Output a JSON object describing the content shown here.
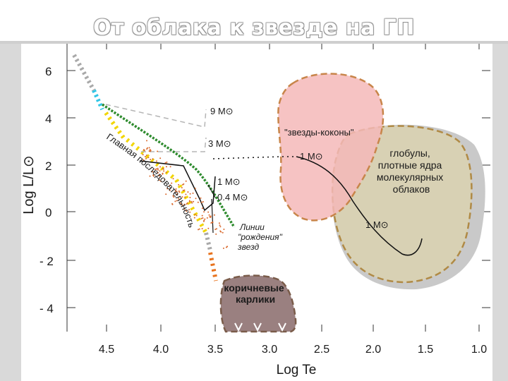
{
  "slide": {
    "title": "От облака к звезде на ГП"
  },
  "diagram": {
    "y_axis": {
      "title": "Log L/L⊙",
      "ticks": [
        "6",
        "4",
        "2",
        "0",
        "- 2",
        "- 4"
      ]
    },
    "x_axis": {
      "title": "Log Te",
      "ticks": [
        "4.5",
        "4.0",
        "3.5",
        "3.0",
        "2.5",
        "2.0",
        "1.5",
        "1.0"
      ]
    },
    "labels": {
      "mass_9": "9 M⊙",
      "mass_3": "3 M⊙",
      "mass_1_track": "1 M⊙",
      "mass_04": "0.4 M⊙",
      "cocoon_star_mass": "1 M⊙",
      "globule_mass": "1 M⊙",
      "cocoon_stars": "\"звезды-коконы\"",
      "globules": "глобулы,\nплотные ядра\nмолекулярных\nоблаков",
      "birth_line": "Линии\n\"рождения\"\nзвезд",
      "brown_dwarfs": "коричневые\nкарлики",
      "main_sequence": "Главная последовательность"
    },
    "colors": {
      "cocoon_fill": "#f4b9b9",
      "cocoon_border": "#c8854a",
      "globule_fill": "#d8d1b4",
      "globule_shadow": "#c9c9c9",
      "globule_border": "#b08a45",
      "brown_dwarf_fill": "#9a8080",
      "birth_line": "#2e8b2e",
      "track_dash": "#b5b5b5",
      "ms_yellow": "#f1d500",
      "ms_cyan": "#31c6e6",
      "ms_gray": "#a9a9a9",
      "ms_orange": "#e8731e",
      "scatter_dots": "#d9682b"
    }
  }
}
